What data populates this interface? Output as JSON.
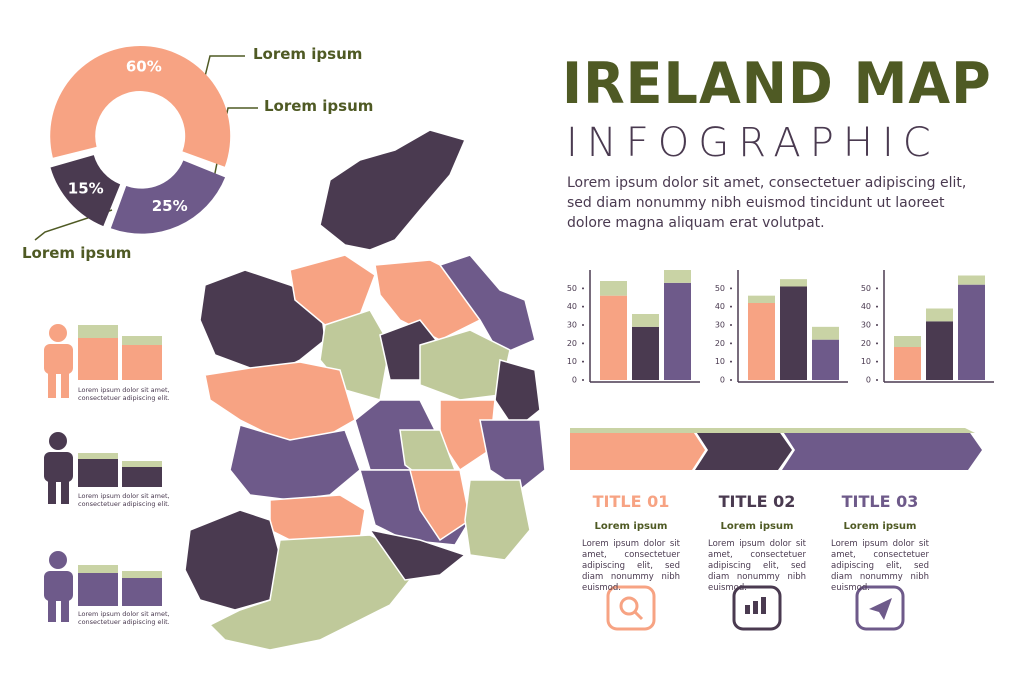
{
  "title": "IRELAND MAP",
  "subtitle": "INFOGRAPHIC",
  "intro": "Lorem ipsum dolor sit amet, consectetuer adipiscing elit, sed diam nonummy nibh euismod tincidunt ut laoreet dolore magna aliquam erat volutpat.",
  "donut": {
    "values": [
      60,
      25,
      15
    ],
    "value_labels": [
      "60%",
      "25%",
      "15%"
    ],
    "colors": [
      "#f7a383",
      "#6e5a8a",
      "#4a3a50"
    ],
    "labels": [
      "Lorem ipsum",
      "Lorem ipsum",
      "Lorem ipsum"
    ]
  },
  "people": [
    {
      "caption": "Lorem ipsum dolor sit amet, consectetuer adipiscing elit."
    },
    {
      "caption": "Lorem ipsum dolor sit amet, consectetuer adipiscing elit."
    },
    {
      "caption": "Lorem ipsum dolor sit amet, consectetuer adipiscing elit."
    }
  ],
  "bar_charts": [
    {
      "ylim": [
        0,
        60
      ],
      "yticks": [
        0,
        10,
        20,
        30,
        40,
        50
      ],
      "cap_color": "#c9d3a5",
      "bars": [
        {
          "color": "#f7a383",
          "values": [
            46,
            8
          ]
        },
        {
          "color": "#4a3a50",
          "values": [
            29,
            7
          ]
        },
        {
          "color": "#6e5a8a",
          "values": [
            53,
            7
          ]
        }
      ]
    },
    {
      "ylim": [
        0,
        60
      ],
      "yticks": [
        0,
        10,
        20,
        30,
        40,
        50
      ],
      "cap_color": "#c9d3a5",
      "bars": [
        {
          "color": "#f7a383",
          "values": [
            42,
            4
          ]
        },
        {
          "color": "#4a3a50",
          "values": [
            51,
            4
          ]
        },
        {
          "color": "#6e5a8a",
          "values": [
            22,
            7
          ]
        }
      ]
    },
    {
      "ylim": [
        0,
        60
      ],
      "yticks": [
        0,
        10,
        20,
        30,
        40,
        50
      ],
      "cap_color": "#c9d3a5",
      "bars": [
        {
          "color": "#f7a383",
          "values": [
            18,
            6
          ]
        },
        {
          "color": "#4a3a50",
          "values": [
            32,
            7
          ]
        },
        {
          "color": "#6e5a8a",
          "values": [
            52,
            5
          ]
        }
      ]
    }
  ],
  "columns": [
    {
      "title": "TITLE 01",
      "color": "#f7a383",
      "heading": "Lorem ipsum",
      "text": "Lorem ipsum dolor sit amet, consectetuer adipiscing elit, sed diam nonummy nibh euismod."
    },
    {
      "title": "TITLE 02",
      "color": "#4a3a50",
      "heading": "Lorem ipsum",
      "text": "Lorem ipsum dolor sit amet, consectetuer adipiscing elit, sed diam nonummy nibh euismod."
    },
    {
      "title": "TITLE 03",
      "color": "#6e5a8a",
      "heading": "Lorem ipsum",
      "text": "Lorem ipsum dolor sit amet, consectetuer adipiscing elit, sed diam nonummy nibh euismod."
    }
  ]
}
